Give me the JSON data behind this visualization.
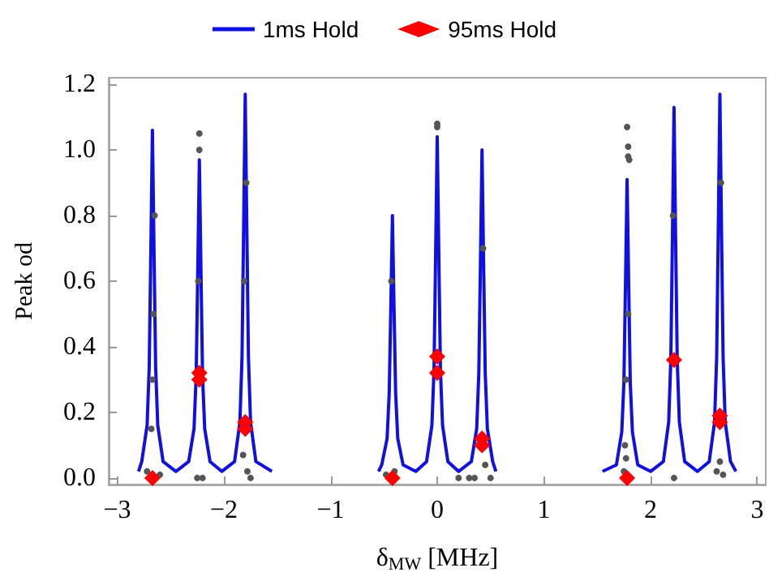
{
  "chart_data": {
    "type": "line",
    "xlabel": "δ$_{MW}$ [MHz]",
    "ylabel": "Peak od",
    "legend": "top",
    "grid": false,
    "xlim": [
      -3.08,
      3.08
    ],
    "ylim": [
      -0.02,
      1.22
    ],
    "xticks": [
      -3,
      -2,
      -1,
      0,
      1,
      2,
      3
    ],
    "yticks": [
      {
        "value": 0,
        "label": "0.0"
      },
      {
        "value": 0.2,
        "label": "0.2"
      },
      {
        "value": 0.4,
        "label": "0.4"
      },
      {
        "value": 0.6,
        "label": "0.6"
      },
      {
        "value": 0.8,
        "label": "0.8"
      },
      {
        "value": 1.0,
        "label": "1.0"
      },
      {
        "value": 1.2,
        "label": "1.2"
      }
    ],
    "series": [
      {
        "name": "1ms Hold",
        "type": "line",
        "color": "#1010e0",
        "marker": "none",
        "x": [
          -2.8,
          -2.77,
          -2.72,
          -2.7,
          -2.685,
          -2.67,
          -2.655,
          -2.64,
          -2.62,
          -2.57,
          -2.45,
          -2.33,
          -2.28,
          -2.26,
          -2.245,
          -2.23,
          -2.215,
          -2.2,
          -2.18,
          -2.13,
          -2.02,
          -1.9,
          -1.85,
          -1.83,
          -1.815,
          -1.8,
          -1.785,
          -1.77,
          -1.75,
          -1.7,
          -1.55,
          -1.2,
          -0.55,
          -0.52,
          -0.47,
          -0.45,
          -0.435,
          -0.42,
          -0.405,
          -0.39,
          -0.37,
          -0.32,
          -0.2,
          -0.1,
          -0.05,
          -0.03,
          -0.015,
          0,
          0.015,
          0.03,
          0.05,
          0.1,
          0.2,
          0.32,
          0.37,
          0.39,
          0.405,
          0.42,
          0.435,
          0.45,
          0.47,
          0.52,
          0.55,
          1.2,
          1.55,
          1.68,
          1.73,
          1.75,
          1.765,
          1.78,
          1.795,
          1.81,
          1.83,
          1.88,
          2.0,
          2.12,
          2.17,
          2.19,
          2.205,
          2.22,
          2.235,
          2.25,
          2.27,
          2.32,
          2.44,
          2.55,
          2.6,
          2.62,
          2.635,
          2.65,
          2.665,
          2.68,
          2.7,
          2.75,
          2.8
        ],
        "values": [
          0.02,
          0.05,
          0.16,
          0.34,
          0.69,
          1.06,
          0.69,
          0.34,
          0.16,
          0.05,
          0.02,
          0.05,
          0.15,
          0.31,
          0.63,
          0.97,
          0.63,
          0.31,
          0.15,
          0.05,
          0.02,
          0.05,
          0.17,
          0.37,
          0.76,
          1.17,
          0.76,
          0.37,
          0.17,
          0.05,
          0.02,
          null,
          0.02,
          0.04,
          0.12,
          0.26,
          0.52,
          0.8,
          0.52,
          0.26,
          0.12,
          0.04,
          0.02,
          0.05,
          0.16,
          0.33,
          0.68,
          1.04,
          0.68,
          0.33,
          0.16,
          0.05,
          0.02,
          0.05,
          0.15,
          0.32,
          0.65,
          1.0,
          0.65,
          0.32,
          0.15,
          0.05,
          0.02,
          null,
          0.02,
          0.04,
          0.14,
          0.29,
          0.59,
          0.91,
          0.59,
          0.29,
          0.14,
          0.04,
          0.02,
          0.05,
          0.17,
          0.36,
          0.73,
          1.13,
          0.73,
          0.36,
          0.17,
          0.05,
          0.02,
          0.05,
          0.17,
          0.37,
          0.76,
          1.17,
          0.76,
          0.37,
          0.17,
          0.05,
          0.02
        ]
      },
      {
        "type": "scatter",
        "color": "#555555",
        "marker": "circle",
        "x": [
          -2.23,
          -2.23,
          0,
          0,
          1.78,
          1.79,
          1.79,
          1.8,
          -2.72,
          -2.6,
          -2.25,
          -2.2,
          -1.78,
          -1.75,
          -1.82,
          -0.48,
          -0.4,
          0.2,
          0.3,
          0.35,
          0.5,
          0.45,
          1.75,
          1.77,
          1.76,
          2.22,
          2.62,
          2.65,
          2.68,
          -2.66,
          -2.65,
          -2.24,
          -1.79,
          -1.81,
          -0.43,
          0.43,
          2.66,
          2.21,
          -2.68,
          -2.67,
          1.79,
          1.77
        ],
        "values": [
          1.05,
          1.0,
          1.08,
          1.07,
          1.07,
          1.01,
          0.98,
          0.97,
          0.02,
          0.01,
          0.0,
          0.0,
          0.02,
          0.0,
          0.07,
          0.01,
          0.02,
          0.0,
          0.0,
          0.0,
          0.0,
          0.04,
          0.02,
          0.06,
          0.1,
          0.0,
          0.02,
          0.05,
          0.01,
          0.5,
          0.8,
          0.6,
          0.9,
          0.6,
          0.6,
          0.7,
          0.9,
          0.8,
          0.15,
          0.3,
          0.5,
          0.3
        ]
      },
      {
        "name": "95ms Hold",
        "type": "scatter",
        "color": "#ff0000",
        "marker": "diamond",
        "x": [
          -2.67,
          -2.23,
          -2.23,
          -1.8,
          -1.8,
          -0.42,
          0,
          0,
          0.42,
          0.42,
          1.78,
          2.22,
          2.65,
          2.65
        ],
        "values": [
          0.0,
          0.32,
          0.3,
          0.17,
          0.15,
          0.0,
          0.37,
          0.32,
          0.12,
          0.1,
          0.0,
          0.36,
          0.19,
          0.17
        ]
      }
    ]
  }
}
